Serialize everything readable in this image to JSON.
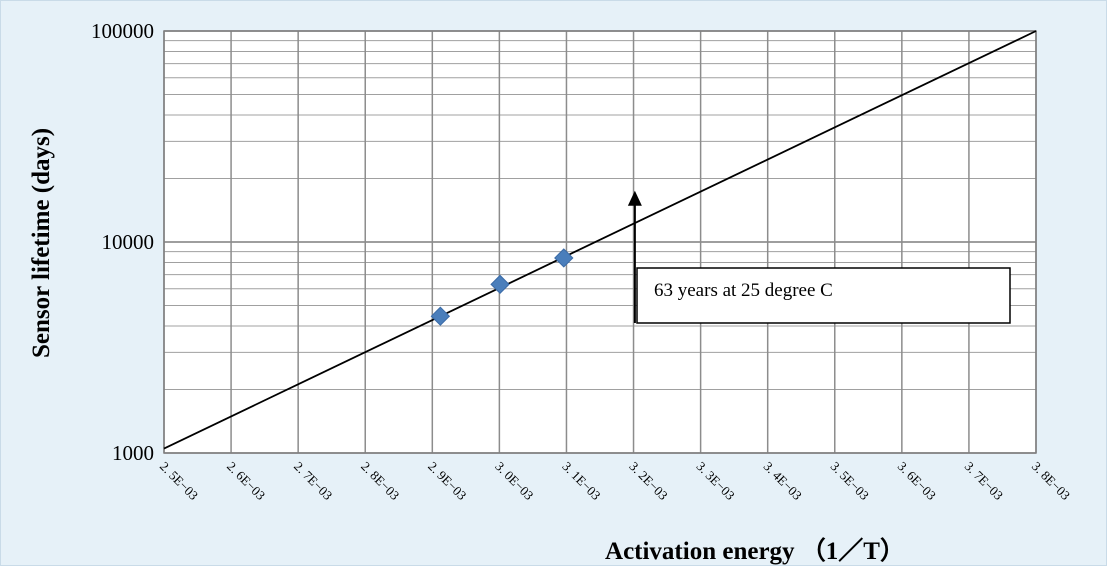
{
  "chart_data": {
    "type": "scatter",
    "title": "",
    "xlabel": "Activation energy （1／T）",
    "ylabel": "Sensor lifetime (days)",
    "x_scale": "linear",
    "y_scale": "log",
    "xlim": [
      0.0025,
      0.0038
    ],
    "ylim": [
      1000,
      100000
    ],
    "x_ticks": [
      0.0025,
      0.0026,
      0.0027,
      0.0028,
      0.0029,
      0.003,
      0.0031,
      0.0032,
      0.0033,
      0.0034,
      0.0035,
      0.0036,
      0.0037,
      0.0038
    ],
    "x_tick_labels": [
      "2. 5E−03",
      "2. 6E−03",
      "2. 7E−03",
      "2. 8E−03",
      "2. 9E−03",
      "3. 0E−03",
      "3. 1E−03",
      "3. 2E−03",
      "3. 3E−03",
      "3. 4E−03",
      "3. 5E−03",
      "3. 6E−03",
      "3. 7E−03",
      "3. 8E−03"
    ],
    "y_tick_labels": [
      {
        "value": 1000,
        "label": "1000"
      },
      {
        "value": 10000,
        "label": "10000"
      },
      {
        "value": 100000,
        "label": "100000"
      }
    ],
    "grid": true,
    "legend": "none",
    "series": [
      {
        "type": "scatter",
        "marker": "diamond",
        "color": "#4a7ebb",
        "points": [
          {
            "x": 0.002912,
            "y": 4450
          },
          {
            "x": 0.003001,
            "y": 6300
          },
          {
            "x": 0.003096,
            "y": 8400
          }
        ]
      },
      {
        "type": "line",
        "color": "#000000",
        "points": [
          {
            "x": 0.0025,
            "y": 1050
          },
          {
            "x": 0.0038,
            "y": 100000
          }
        ]
      }
    ],
    "annotations": [
      {
        "text": "63 years at 25 degree C",
        "arrow_x": 0.003202,
        "arrow_y_from": 4200,
        "arrow_y_to": 17500
      }
    ]
  }
}
